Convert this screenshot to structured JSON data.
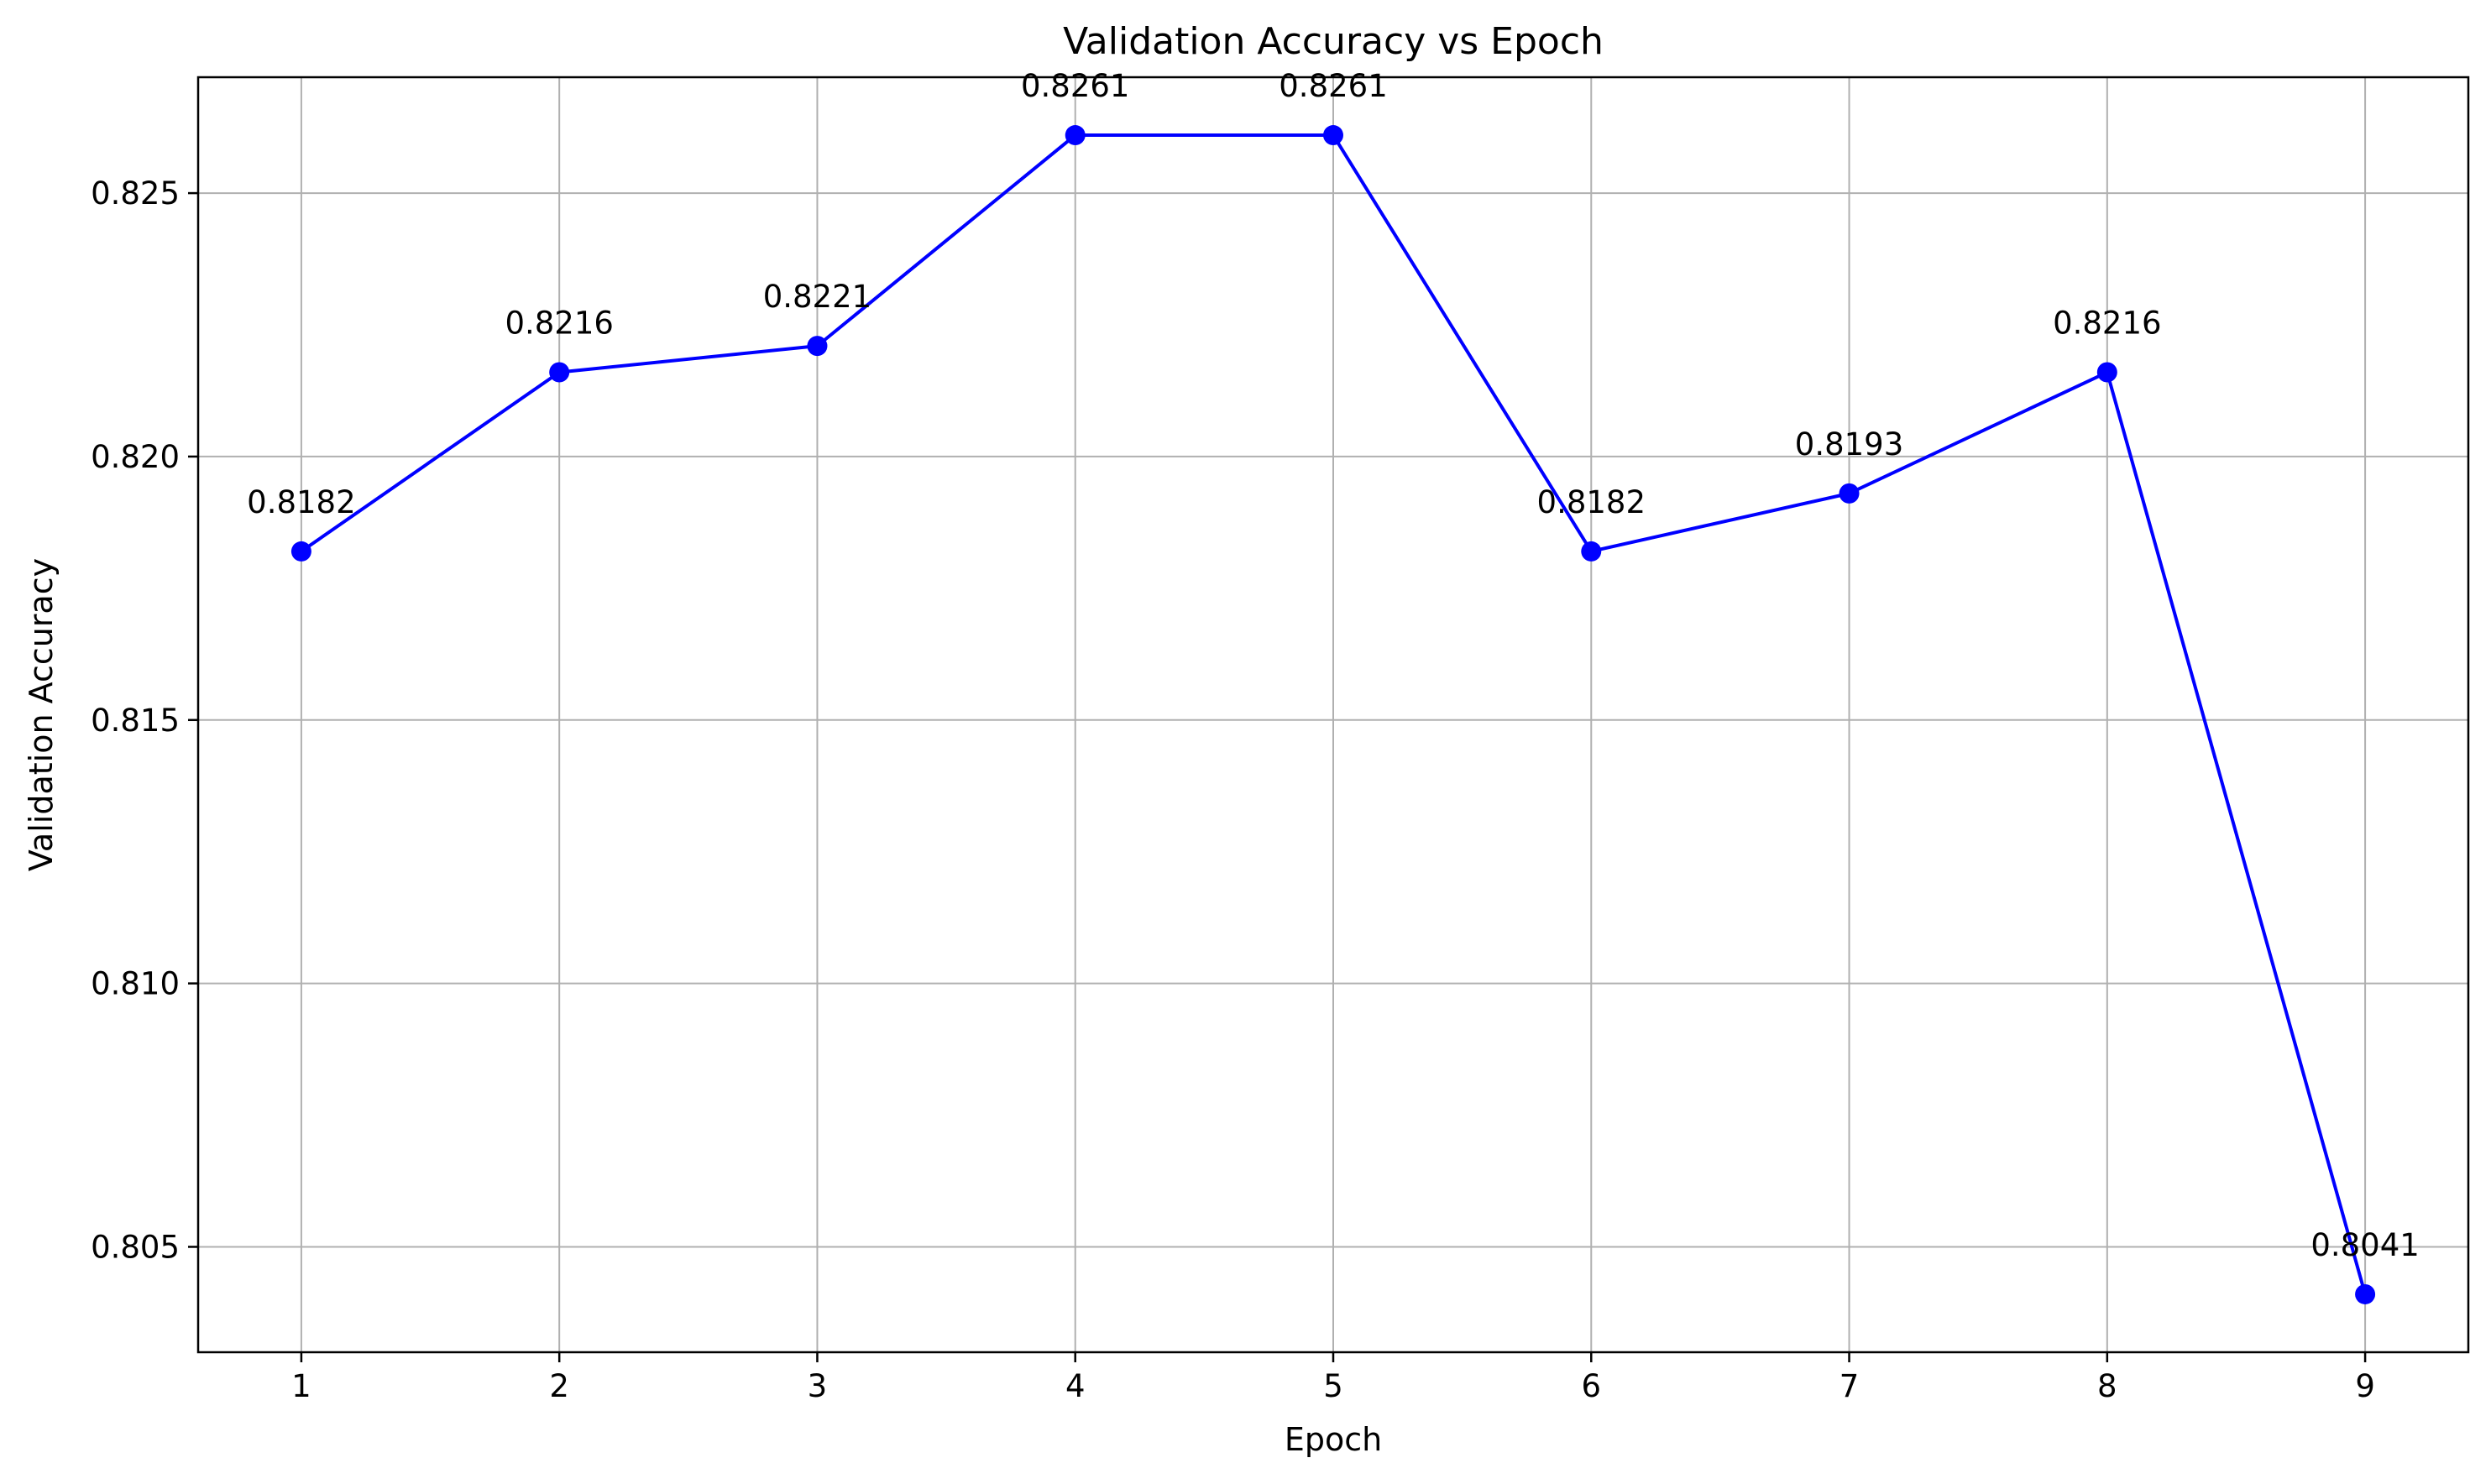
{
  "chart_data": {
    "type": "line",
    "title": "Validation Accuracy vs Epoch",
    "xlabel": "Epoch",
    "ylabel": "Validation Accuracy",
    "x": [
      1,
      2,
      3,
      4,
      5,
      6,
      7,
      8,
      9
    ],
    "series": [
      {
        "values": [
          0.8182,
          0.8216,
          0.8221,
          0.8261,
          0.8261,
          0.8182,
          0.8193,
          0.8216,
          0.8041
        ],
        "color": "#0000ff",
        "marker": "circle"
      }
    ],
    "data_labels": [
      "0.8182",
      "0.8216",
      "0.8221",
      "0.8261",
      "0.8261",
      "0.8182",
      "0.8193",
      "0.8216",
      "0.8041"
    ],
    "xticks": [
      "1",
      "2",
      "3",
      "4",
      "5",
      "6",
      "7",
      "8",
      "9"
    ],
    "yticks": [
      "0.805",
      "0.810",
      "0.815",
      "0.820",
      "0.825"
    ],
    "ytick_values": [
      0.805,
      0.81,
      0.815,
      0.82,
      0.825
    ],
    "xlim": [
      0.6,
      9.4
    ],
    "ylim": [
      0.803,
      0.8272
    ],
    "grid": true,
    "legend": false
  }
}
